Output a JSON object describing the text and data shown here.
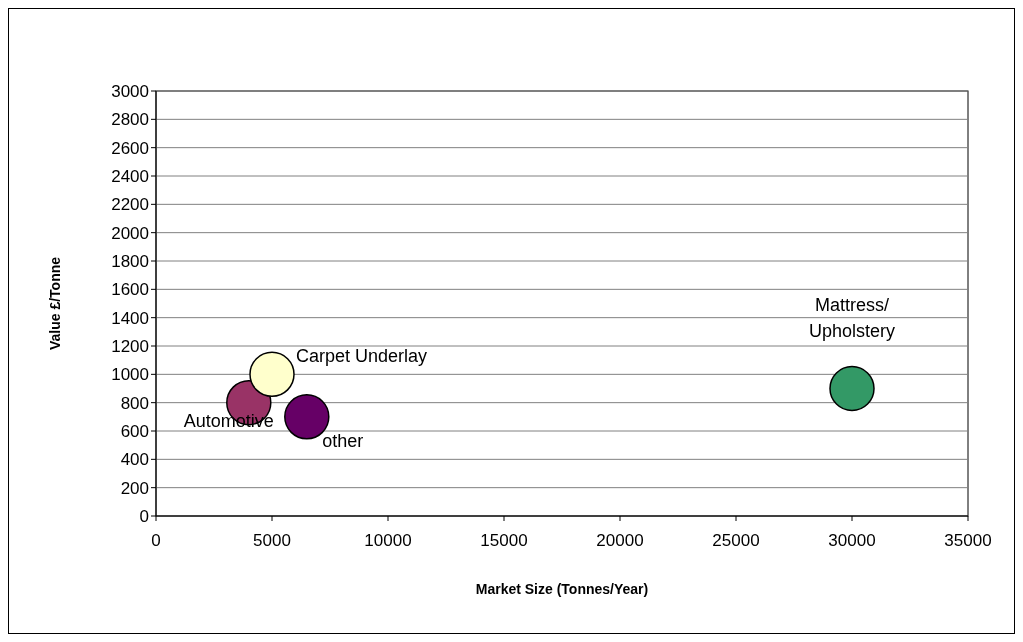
{
  "chart_data": {
    "type": "scatter",
    "xlabel": "Market Size (Tonnes/Year)",
    "ylabel": "Value £/Tonne",
    "xlim": [
      0,
      35000
    ],
    "xticks": [
      0,
      5000,
      10000,
      15000,
      20000,
      25000,
      30000,
      35000
    ],
    "ylim": [
      0,
      3000
    ],
    "yticks": [
      0,
      200,
      400,
      600,
      800,
      1000,
      1200,
      1400,
      1600,
      1800,
      2000,
      2200,
      2400,
      2600,
      2800,
      3000
    ],
    "grid": "y",
    "marker": "circle",
    "series": [
      {
        "name": "Automotive",
        "color": "#993366",
        "x": [
          4000
        ],
        "values": [
          800
        ]
      },
      {
        "name": "Carpet Underlay",
        "color": "#ffffcc",
        "x": [
          5000
        ],
        "values": [
          1000
        ]
      },
      {
        "name": "other",
        "color": "#660066",
        "x": [
          6500
        ],
        "values": [
          700
        ]
      },
      {
        "name": "Mattress/\nUpholstery",
        "color": "#339966",
        "x": [
          30000
        ],
        "values": [
          900
        ]
      }
    ]
  }
}
